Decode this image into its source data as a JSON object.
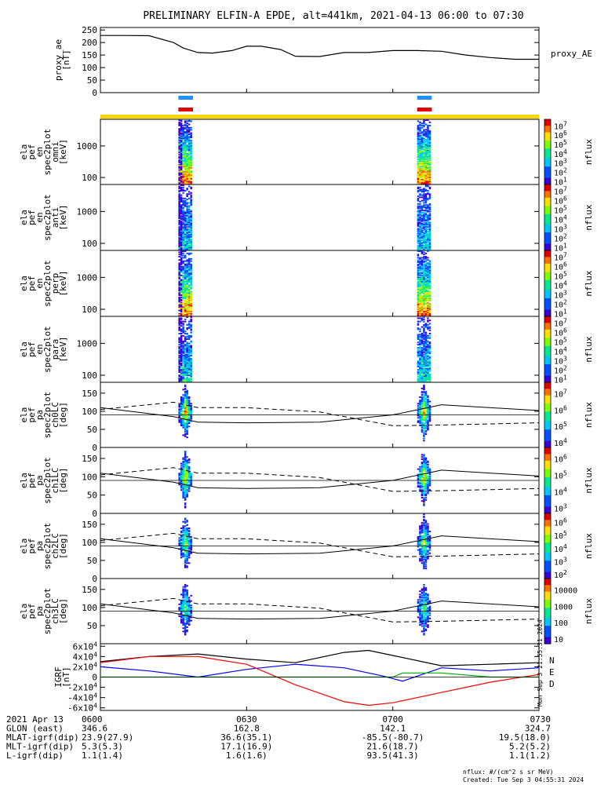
{
  "chart_data": {
    "type": "heatmap",
    "title": "PRELIMINARY ELFIN-A EPDE, alt=441km, 2021-04-13 06:00 to 07:30",
    "x_range": [
      "2021-04-13 06:00",
      "2021-04-13 07:30"
    ],
    "x_ticks": [
      "0600",
      "0630",
      "0700",
      "0730"
    ],
    "science_zones": [
      {
        "start": "06:16",
        "end": "06:19"
      },
      {
        "start": "07:05",
        "end": "07:08"
      }
    ],
    "panels": [
      {
        "id": "proxy-ae",
        "type": "line",
        "ylabel_lines": [
          "proxy_ae",
          "[nT]"
        ],
        "yticks": [
          "0",
          "50",
          "100",
          "150",
          "200",
          "250"
        ],
        "ylim": [
          0,
          260
        ],
        "legend": "proxy_AE",
        "series": [
          {
            "x_min": [
              0,
              5,
              10,
              15,
              17,
              20,
              23,
              27,
              30,
              33,
              37,
              40,
              45,
              50,
              55,
              60,
              65,
              70,
              75,
              80,
              85,
              90
            ],
            "y": [
              228,
              228,
              227,
              200,
              178,
              160,
              158,
              168,
              185,
              185,
              172,
              145,
              144,
              160,
              160,
              168,
              168,
              165,
              150,
              140,
              133,
              133
            ]
          }
        ]
      },
      {
        "id": "ela-pef-en-spec2plot-omni",
        "type": "heatmap",
        "ylabel_lines": [
          "ela",
          "pef",
          "en",
          "spec2plot",
          "omni",
          "[keV]"
        ],
        "yticks": [
          "100",
          "1000"
        ],
        "ylog": true,
        "ylim": [
          60,
          7000
        ],
        "cbar_ticks": [
          "10^1",
          "10^2",
          "10^3",
          "10^4",
          "10^5",
          "10^6",
          "10^7"
        ],
        "cbar_label": "nflux"
      },
      {
        "id": "ela-pef-en-spec2plot-anti",
        "type": "heatmap",
        "ylabel_lines": [
          "ela",
          "pef",
          "en",
          "spec2plot",
          "anti",
          "[keV]"
        ],
        "yticks": [
          "100",
          "1000"
        ],
        "ylog": true,
        "ylim": [
          60,
          7000
        ],
        "cbar_ticks": [
          "10^1",
          "10^2",
          "10^3",
          "10^4",
          "10^5",
          "10^6",
          "10^7"
        ],
        "cbar_label": "nflux"
      },
      {
        "id": "ela-pef-en-spec2plot-perp",
        "type": "heatmap",
        "ylabel_lines": [
          "ela",
          "pef",
          "en",
          "spec2plot",
          "perp",
          "[keV]"
        ],
        "yticks": [
          "100",
          "1000"
        ],
        "ylog": true,
        "ylim": [
          60,
          7000
        ],
        "cbar_ticks": [
          "10^1",
          "10^2",
          "10^3",
          "10^4",
          "10^5",
          "10^6",
          "10^7"
        ],
        "cbar_label": "nflux"
      },
      {
        "id": "ela-pef-en-spec2plot-para",
        "type": "heatmap",
        "ylabel_lines": [
          "ela",
          "pef",
          "en",
          "spec2plot",
          "para",
          "[keV]"
        ],
        "yticks": [
          "100",
          "1000"
        ],
        "ylog": true,
        "ylim": [
          60,
          7000
        ],
        "cbar_ticks": [
          "10^1",
          "10^2",
          "10^3",
          "10^4",
          "10^5",
          "10^6",
          "10^7"
        ],
        "cbar_label": "nflux"
      },
      {
        "id": "ela-pef-pa-spec2plot-ch0lc",
        "type": "heatmap",
        "ylabel_lines": [
          "ela",
          "pef",
          "pa",
          "spec2plot",
          "ch0LC",
          "[deg]"
        ],
        "yticks": [
          "0",
          "50",
          "100",
          "150"
        ],
        "ylim": [
          0,
          180
        ],
        "cbar_ticks": [
          "10^4",
          "10^5",
          "10^6",
          "10^7"
        ],
        "cbar_label": "nflux"
      },
      {
        "id": "ela-pef-pa-spec2plot-ch1lc",
        "type": "heatmap",
        "ylabel_lines": [
          "ela",
          "pef",
          "pa",
          "spec2plot",
          "ch1LC",
          "[deg]"
        ],
        "yticks": [
          "0",
          "50",
          "100",
          "150"
        ],
        "ylim": [
          0,
          180
        ],
        "cbar_ticks": [
          "10^3",
          "10^4",
          "10^5",
          "10^6"
        ],
        "cbar_label": "nflux"
      },
      {
        "id": "ela-pef-pa-spec2plot-ch2lc",
        "type": "heatmap",
        "ylabel_lines": [
          "ela",
          "pef",
          "pa",
          "spec2plot",
          "ch2LC",
          "[deg]"
        ],
        "yticks": [
          "0",
          "50",
          "100",
          "150"
        ],
        "ylim": [
          0,
          180
        ],
        "cbar_ticks": [
          "10^2",
          "10^3",
          "10^4",
          "10^5",
          "10^6"
        ],
        "cbar_label": "nflux"
      },
      {
        "id": "ela-pef-pa-spec2plot-ch3lc",
        "type": "heatmap",
        "ylabel_lines": [
          "ela",
          "pef",
          "pa",
          "spec2plot",
          "ch3LC",
          "[deg]"
        ],
        "yticks": [
          "50",
          "100",
          "150"
        ],
        "ylim": [
          0,
          180
        ],
        "cbar_ticks": [
          "10",
          "100",
          "1000",
          "10000"
        ],
        "cbar_label": "nflux"
      },
      {
        "id": "igrf",
        "type": "line",
        "ylabel_lines": [
          "IGRF",
          "[nT]"
        ],
        "yticks": [
          "-6x10^4",
          "-4x10^4",
          "-2x10^4",
          "0",
          "2x10^4",
          "4x10^4",
          "6x10^4"
        ],
        "ylim": [
          -65000,
          65000
        ],
        "legend": [
          "N",
          "E",
          "D"
        ],
        "series": [
          {
            "name": "N",
            "color": "#000000",
            "x_min": [
              0,
              10,
              20,
              30,
              40,
              50,
              55,
              60,
              70,
              80,
              90
            ],
            "y": [
              30000,
              40000,
              45000,
              35000,
              28000,
              48000,
              52000,
              42000,
              22000,
              25000,
              28000
            ]
          },
          {
            "name": "E",
            "color": "#0000ff",
            "x_min": [
              0,
              10,
              20,
              30,
              40,
              50,
              58,
              62,
              70,
              80,
              90
            ],
            "y": [
              20000,
              12000,
              0,
              15000,
              25000,
              18000,
              2000,
              -8000,
              18000,
              12000,
              18000
            ]
          },
          {
            "name": "D",
            "color": "#ff0000",
            "x_min": [
              0,
              10,
              20,
              30,
              40,
              50,
              55,
              60,
              70,
              80,
              90
            ],
            "y": [
              28000,
              40000,
              40000,
              25000,
              -15000,
              -48000,
              -55000,
              -50000,
              -30000,
              -10000,
              5000
            ]
          },
          {
            "name": "green",
            "color": "#00aa00",
            "x_min": [
              0,
              20,
              40,
              60,
              62,
              70,
              80,
              90
            ],
            "y": [
              0,
              0,
              0,
              0,
              8000,
              8000,
              0,
              0
            ]
          }
        ]
      }
    ],
    "ephemeris": {
      "rows": [
        {
          "label": "2021 Apr 13",
          "values": [
            "0600",
            "0630",
            "0700",
            "0730"
          ]
        },
        {
          "label": "GLON (east)",
          "values": [
            "346.6",
            "162.8",
            "142.1",
            "324.7"
          ]
        },
        {
          "label": "MLAT-igrf(dip)",
          "values": [
            "23.9(27.9)",
            "36.6(35.1)",
            "-85.5(-80.7)",
            "19.5(18.0)"
          ]
        },
        {
          "label": "MLT-igrf(dip)",
          "values": [
            "5.3(5.3)",
            "17.1(16.9)",
            "21.6(18.7)",
            "5.2(5.2)"
          ]
        },
        {
          "label": "L-igrf(dip)",
          "values": [
            "1.1(1.4)",
            "1.6(1.6)",
            "93.5(41.3)",
            "1.1(1.2)"
          ]
        }
      ]
    },
    "footer": {
      "units": "nflux: #/(cm^2 s sr MeV)",
      "created": "Created: Tue Sep  3 04:55:31 2024",
      "side_stamp": "Mon Sep  3 21:55:31 2024"
    }
  }
}
